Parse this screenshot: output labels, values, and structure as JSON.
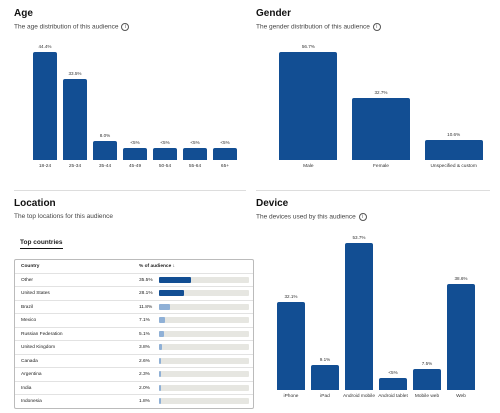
{
  "chart_data": [
    {
      "type": "bar",
      "title": "Age",
      "subtitle": "The age distribution of this audience",
      "categories": [
        "18-24",
        "25-34",
        "35-44",
        "45-49",
        "50-54",
        "55-64",
        "65+"
      ],
      "values": [
        44.4,
        33.5,
        8.0,
        3.5,
        3.5,
        3.5,
        3.5
      ],
      "value_labels": [
        "44.4%",
        "33.5%",
        "8.0%",
        "<5%",
        "<5%",
        "<5%",
        "<5%"
      ],
      "color": "#124e93"
    },
    {
      "type": "bar",
      "title": "Gender",
      "subtitle": "The gender distribution of this audience",
      "categories": [
        "Male",
        "Female",
        "Unspecified & custom"
      ],
      "values": [
        56.7,
        32.7,
        10.6
      ],
      "value_labels": [
        "56.7%",
        "32.7%",
        "10.6%"
      ],
      "color": "#124e93"
    },
    {
      "type": "bar",
      "title": "Device",
      "subtitle": "The devices used by this audience",
      "categories": [
        "iPhone",
        "iPad",
        "Android mobile",
        "Android tablet",
        "Mobile web",
        "Web"
      ],
      "values": [
        32.1,
        9.1,
        53.7,
        3,
        7.5,
        38.6
      ],
      "value_labels": [
        "32.1%",
        "9.1%",
        "53.7%",
        "<5%",
        "7.5%",
        "38.6%"
      ],
      "color": "#124e93"
    }
  ],
  "location": {
    "title": "Location",
    "subtitle": "The top locations for this audience",
    "tab": "Top countries",
    "columns": [
      "Country",
      "% of audience"
    ],
    "rows": [
      {
        "country": "Other",
        "value": 35.5,
        "label": "35.5%"
      },
      {
        "country": "United States",
        "value": 28.1,
        "label": "28.1%"
      },
      {
        "country": "Brazil",
        "value": 11.8,
        "label": "11.8%"
      },
      {
        "country": "Mexico",
        "value": 7.1,
        "label": "7.1%"
      },
      {
        "country": "Russian Federation",
        "value": 5.1,
        "label": "5.1%"
      },
      {
        "country": "United Kingdom",
        "value": 3.8,
        "label": "3.8%"
      },
      {
        "country": "Canada",
        "value": 2.6,
        "label": "2.6%"
      },
      {
        "country": "Argentina",
        "value": 2.3,
        "label": "2.3%"
      },
      {
        "country": "India",
        "value": 2.0,
        "label": "2.0%"
      },
      {
        "country": "Indonesia",
        "value": 1.8,
        "label": "1.8%"
      }
    ]
  }
}
